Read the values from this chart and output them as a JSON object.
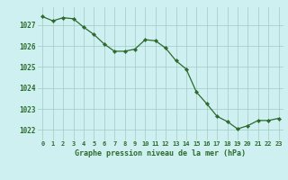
{
  "x": [
    0,
    1,
    2,
    3,
    4,
    5,
    6,
    7,
    8,
    9,
    10,
    11,
    12,
    13,
    14,
    15,
    16,
    17,
    18,
    19,
    20,
    21,
    22,
    23
  ],
  "y": [
    1027.4,
    1027.2,
    1027.35,
    1027.3,
    1026.9,
    1026.55,
    1026.1,
    1025.75,
    1025.75,
    1025.85,
    1026.3,
    1026.25,
    1025.9,
    1025.3,
    1024.9,
    1023.8,
    1023.25,
    1022.65,
    1022.4,
    1022.05,
    1022.2,
    1022.45,
    1022.45,
    1022.55
  ],
  "line_color": "#2d6a2d",
  "marker_color": "#2d6a2d",
  "bg_color": "#cff0f0",
  "grid_color": "#a0c8c8",
  "xlabel": "Graphe pression niveau de la mer (hPa)",
  "xlabel_color": "#2d6a2d",
  "tick_color": "#2d6a2d",
  "ylim": [
    1021.5,
    1027.85
  ],
  "yticks": [
    1022,
    1023,
    1024,
    1025,
    1026,
    1027
  ],
  "xticks": [
    0,
    1,
    2,
    3,
    4,
    5,
    6,
    7,
    8,
    9,
    10,
    11,
    12,
    13,
    14,
    15,
    16,
    17,
    18,
    19,
    20,
    21,
    22,
    23
  ],
  "figsize": [
    3.2,
    2.0
  ],
  "dpi": 100
}
